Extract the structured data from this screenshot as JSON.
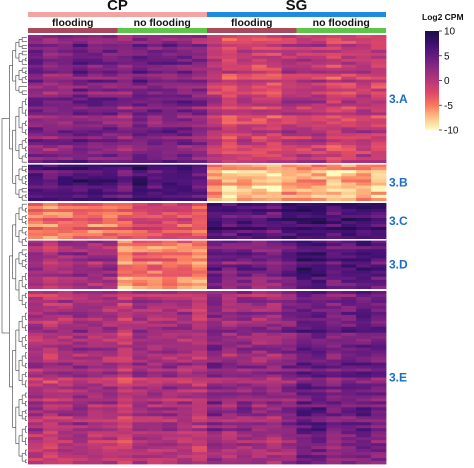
{
  "chart_data": {
    "type": "heatmap",
    "title": "",
    "legend": {
      "title": "Log2 CPM",
      "ticks": [
        10,
        5,
        0,
        -5,
        -10
      ],
      "range": [
        -10,
        10
      ],
      "placement": "right"
    },
    "column_groups": [
      {
        "label": "CP",
        "color": "#f2a3a3",
        "subgroups": [
          {
            "label": "flooding",
            "color": "#a94a5c"
          },
          {
            "label": "no flooding",
            "color": "#5fc44a"
          }
        ]
      },
      {
        "label": "SG",
        "color": "#1e8be0",
        "subgroups": [
          {
            "label": "flooding",
            "color": "#a94a5c"
          },
          {
            "label": "no flooding",
            "color": "#5fc44a"
          }
        ]
      }
    ],
    "clusters": [
      {
        "label": "3.A",
        "level": [
          3,
          3,
          -1,
          -1
        ]
      },
      {
        "label": "3.B",
        "level": [
          6,
          6,
          -7,
          -7
        ]
      },
      {
        "label": "3.C",
        "level": [
          -5,
          -3,
          6,
          7
        ]
      },
      {
        "label": "3.D",
        "level": [
          1,
          -5,
          4,
          6
        ]
      },
      {
        "label": "3.E",
        "level": [
          0,
          0,
          2,
          4
        ]
      }
    ],
    "cluster_label_color": "#1a6fc4",
    "dendrogram": "rows",
    "palette": [
      "#fcfdbf",
      "#fec287",
      "#f9795d",
      "#de4968",
      "#b63679",
      "#8c2981",
      "#641a80",
      "#3b0f70",
      "#1c1044"
    ]
  }
}
